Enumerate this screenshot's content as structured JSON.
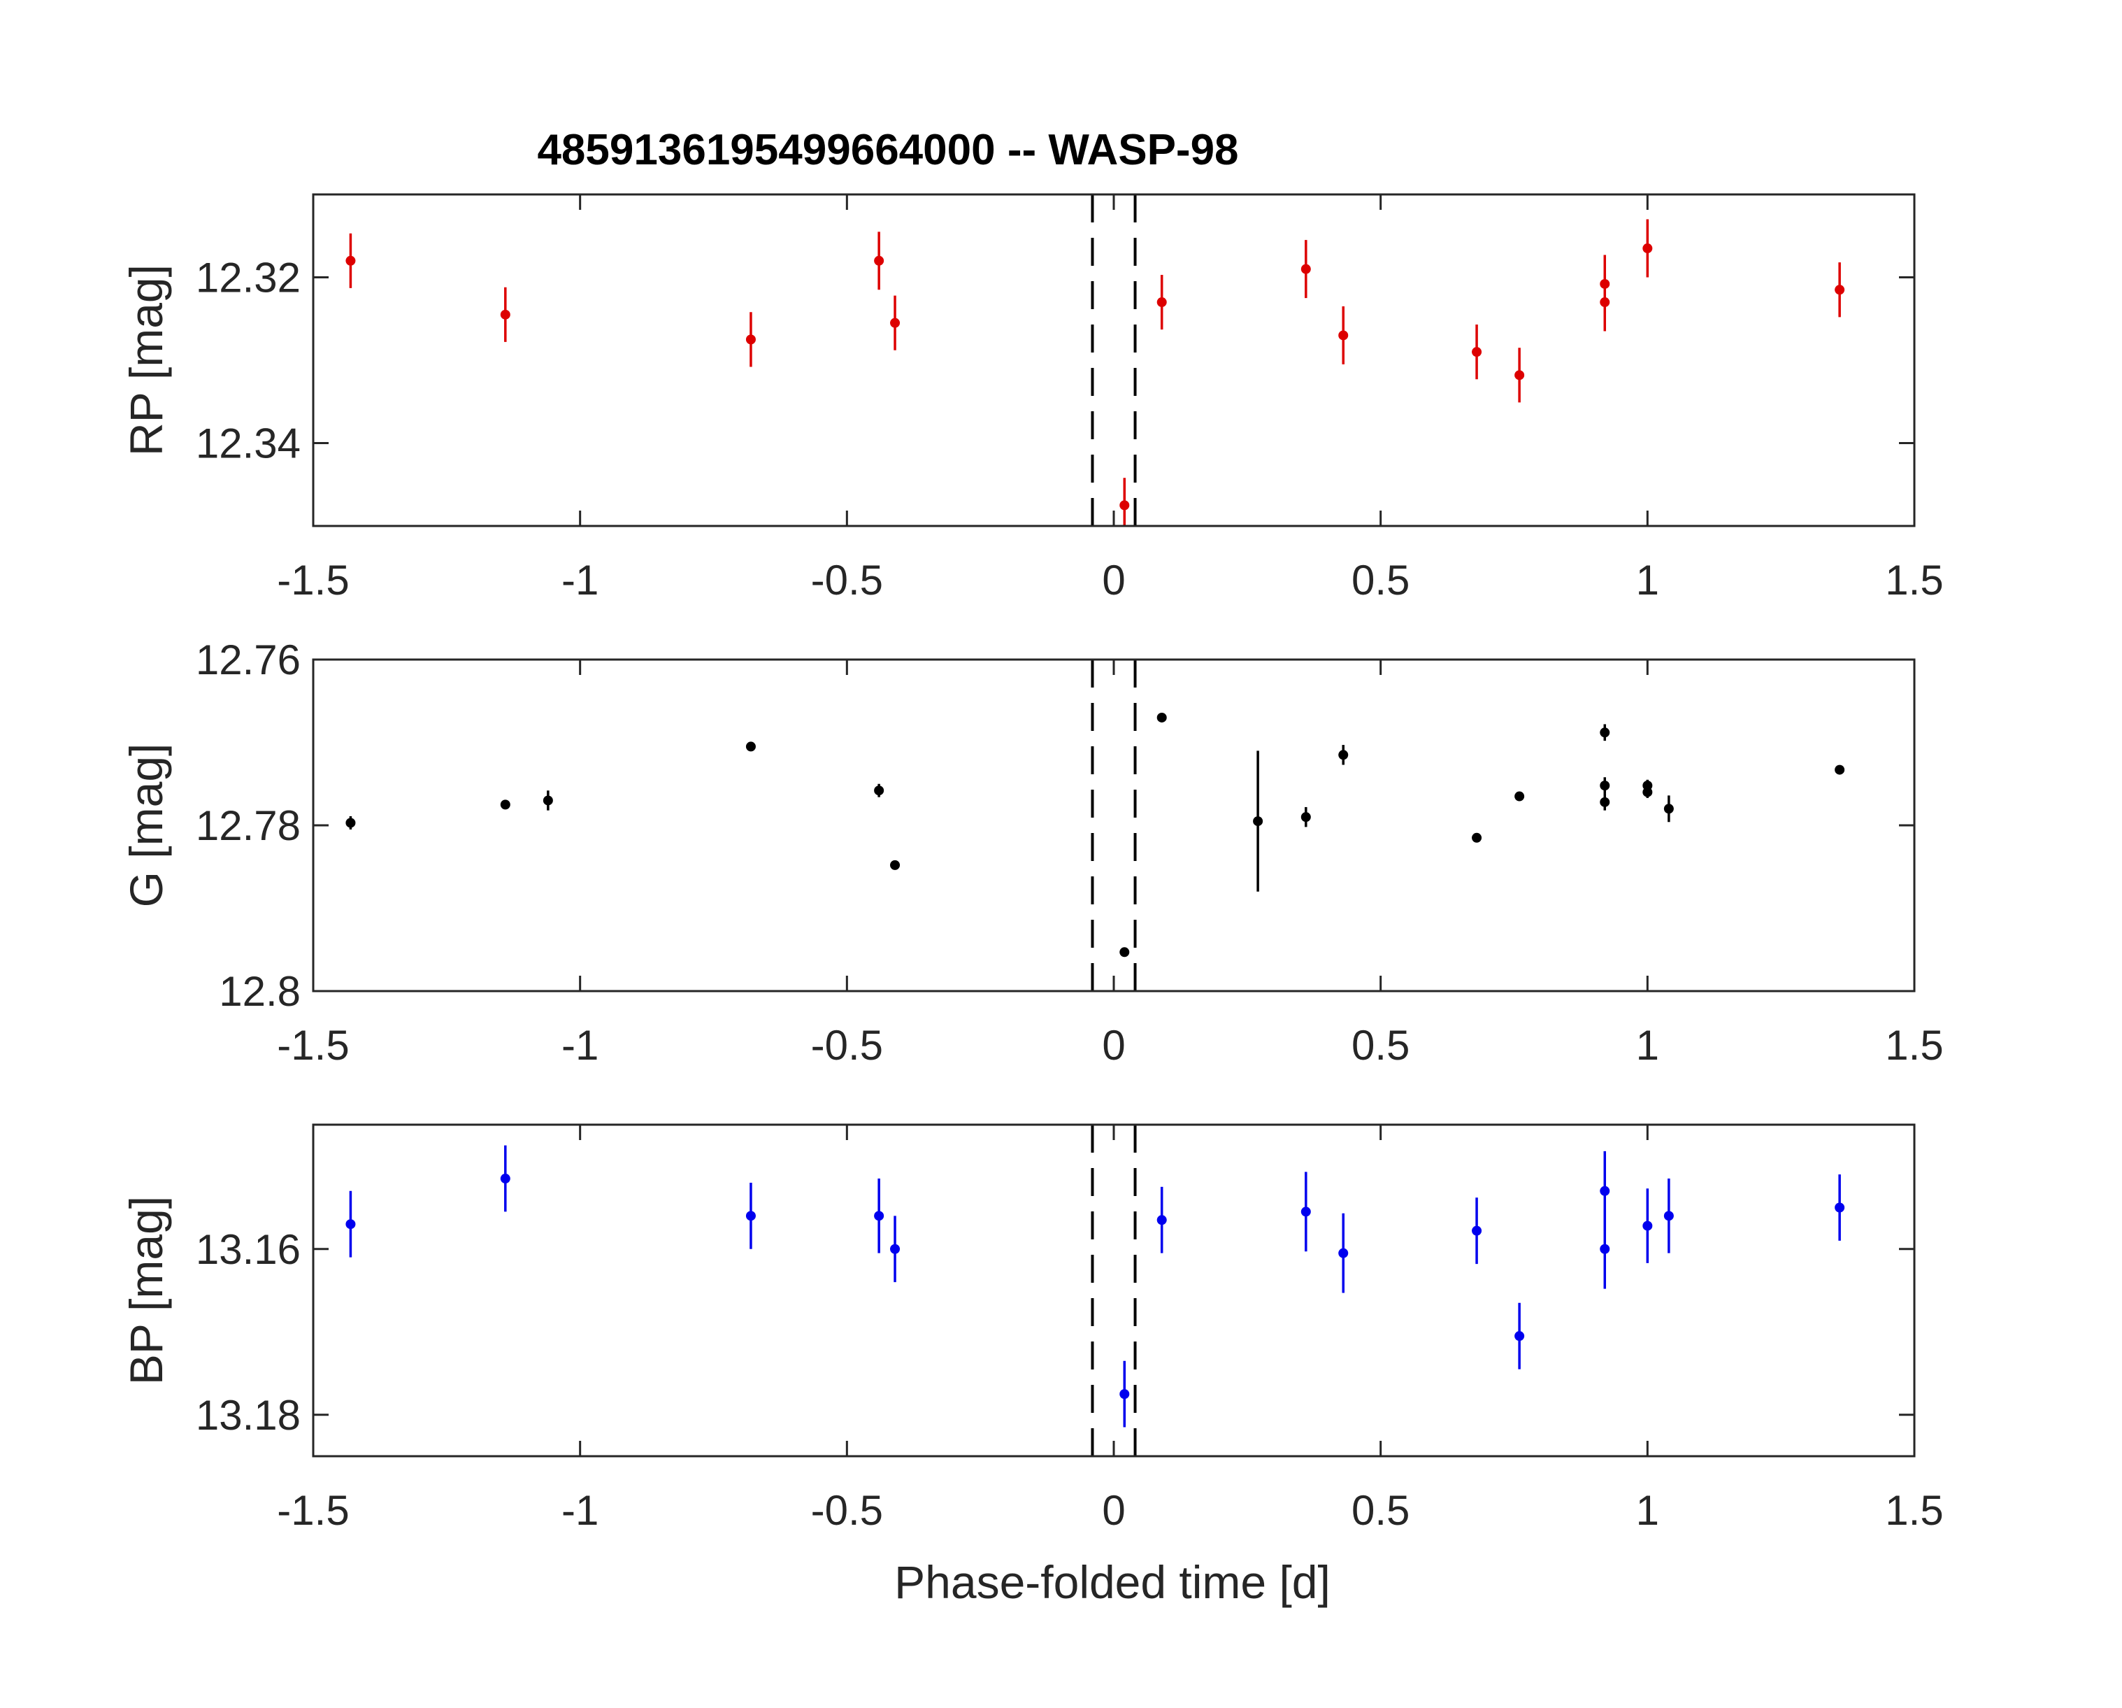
{
  "chart_data": {
    "type": "scatter",
    "title": "4859136195499664000 -- WASP-98",
    "xlabel": "Phase-folded time [d]",
    "xlim": [
      -1.5,
      1.5
    ],
    "xticks": [
      -1.5,
      -1,
      -0.5,
      0,
      0.5,
      1,
      1.5
    ],
    "xtick_labels": [
      "-1.5",
      "-1",
      "-0.5",
      "0",
      "0.5",
      "1",
      "1.5"
    ],
    "transit_window": [
      -0.04,
      0.04
    ],
    "panels": [
      {
        "ylabel": "RP [mag]",
        "color": "#dd0000",
        "ylim": [
          12.31,
          12.35
        ],
        "y_reversed": true,
        "yticks": [
          12.32,
          12.34
        ],
        "ytick_labels": [
          "12.32",
          "12.34"
        ],
        "points": [
          {
            "x": -1.43,
            "y": 12.318,
            "err": 0.0033
          },
          {
            "x": -1.14,
            "y": 12.3245,
            "err": 0.0033
          },
          {
            "x": -0.68,
            "y": 12.3275,
            "err": 0.0033
          },
          {
            "x": -0.44,
            "y": 12.318,
            "err": 0.0035
          },
          {
            "x": -0.41,
            "y": 12.3255,
            "err": 0.0033
          },
          {
            "x": 0.02,
            "y": 12.3475,
            "err": 0.0033
          },
          {
            "x": 0.09,
            "y": 12.323,
            "err": 0.0033
          },
          {
            "x": 0.36,
            "y": 12.319,
            "err": 0.0035
          },
          {
            "x": 0.43,
            "y": 12.327,
            "err": 0.0035
          },
          {
            "x": 0.68,
            "y": 12.329,
            "err": 0.0033
          },
          {
            "x": 0.76,
            "y": 12.3318,
            "err": 0.0033
          },
          {
            "x": 0.92,
            "y": 12.3208,
            "err": 0.0035
          },
          {
            "x": 0.92,
            "y": 12.323,
            "err": 0.0035
          },
          {
            "x": 1.0,
            "y": 12.3165,
            "err": 0.0035
          },
          {
            "x": 1.36,
            "y": 12.3215,
            "err": 0.0033
          }
        ]
      },
      {
        "ylabel": "G [mag]",
        "color": "#000000",
        "ylim": [
          12.76,
          12.8
        ],
        "y_reversed": true,
        "yticks": [
          12.76,
          12.78,
          12.8
        ],
        "ytick_labels": [
          "12.76",
          "12.78",
          "12.8"
        ],
        "points": [
          {
            "x": -1.43,
            "y": 12.7797,
            "err": 0.0008
          },
          {
            "x": -1.14,
            "y": 12.7775,
            "err": 0.0005
          },
          {
            "x": -1.06,
            "y": 12.777,
            "err": 0.0012
          },
          {
            "x": -0.68,
            "y": 12.7705,
            "err": 0.0005
          },
          {
            "x": -0.44,
            "y": 12.7758,
            "err": 0.0008
          },
          {
            "x": -0.41,
            "y": 12.7848,
            "err": 0.0005
          },
          {
            "x": 0.02,
            "y": 12.7953,
            "err": 0.0005
          },
          {
            "x": 0.09,
            "y": 12.767,
            "err": 0.0005
          },
          {
            "x": 0.27,
            "y": 12.7795,
            "err": 0.0085
          },
          {
            "x": 0.36,
            "y": 12.779,
            "err": 0.0012
          },
          {
            "x": 0.43,
            "y": 12.7715,
            "err": 0.0012
          },
          {
            "x": 0.68,
            "y": 12.7815,
            "err": 0.0005
          },
          {
            "x": 0.76,
            "y": 12.7765,
            "err": 0.0005
          },
          {
            "x": 0.92,
            "y": 12.7688,
            "err": 0.001
          },
          {
            "x": 0.92,
            "y": 12.7752,
            "err": 0.001
          },
          {
            "x": 0.92,
            "y": 12.7772,
            "err": 0.001
          },
          {
            "x": 1.0,
            "y": 12.7752,
            "err": 0.0007
          },
          {
            "x": 1.0,
            "y": 12.776,
            "err": 0.0007
          },
          {
            "x": 1.04,
            "y": 12.778,
            "err": 0.0016
          },
          {
            "x": 1.36,
            "y": 12.7733,
            "err": 0.0005
          }
        ]
      },
      {
        "ylabel": "BP [mag]",
        "color": "#0000ee",
        "ylim": [
          13.145,
          13.185
        ],
        "y_reversed": true,
        "yticks": [
          13.16,
          13.18
        ],
        "ytick_labels": [
          "13.16",
          "13.18"
        ],
        "points": [
          {
            "x": -1.43,
            "y": 13.157,
            "err": 0.004
          },
          {
            "x": -1.14,
            "y": 13.1515,
            "err": 0.004
          },
          {
            "x": -0.68,
            "y": 13.156,
            "err": 0.004
          },
          {
            "x": -0.44,
            "y": 13.156,
            "err": 0.0045
          },
          {
            "x": -0.41,
            "y": 13.16,
            "err": 0.004
          },
          {
            "x": 0.02,
            "y": 13.1775,
            "err": 0.004
          },
          {
            "x": 0.09,
            "y": 13.1565,
            "err": 0.004
          },
          {
            "x": 0.36,
            "y": 13.1555,
            "err": 0.0048
          },
          {
            "x": 0.43,
            "y": 13.1605,
            "err": 0.0048
          },
          {
            "x": 0.68,
            "y": 13.1578,
            "err": 0.004
          },
          {
            "x": 0.76,
            "y": 13.1705,
            "err": 0.004
          },
          {
            "x": 0.92,
            "y": 13.153,
            "err": 0.0048
          },
          {
            "x": 0.92,
            "y": 13.16,
            "err": 0.0048
          },
          {
            "x": 1.0,
            "y": 13.1572,
            "err": 0.0045
          },
          {
            "x": 1.04,
            "y": 13.156,
            "err": 0.0045
          },
          {
            "x": 1.36,
            "y": 13.155,
            "err": 0.004
          }
        ]
      }
    ]
  }
}
